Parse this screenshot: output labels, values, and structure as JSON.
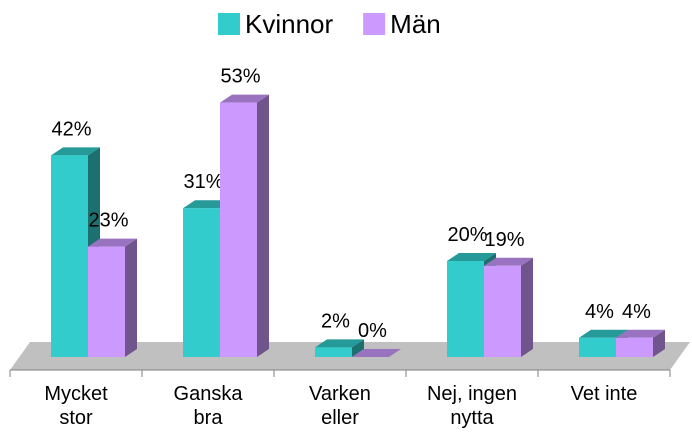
{
  "chart_data": {
    "type": "bar3d",
    "categories": [
      "Mycket stor",
      "Ganska bra",
      "Varken eller",
      "Nej, ingen nytta",
      "Vet inte"
    ],
    "series": [
      {
        "name": "Kvinnor",
        "color": "#33cccc",
        "values": [
          42,
          31,
          2,
          20,
          4
        ],
        "value_labels": [
          "42%",
          "31%",
          "2%",
          "20%",
          "4%"
        ]
      },
      {
        "name": "Män",
        "color": "#cc99ff",
        "values": [
          23,
          53,
          0,
          19,
          4
        ],
        "value_labels": [
          "23%",
          "53%",
          "0%",
          "19%",
          "4%"
        ]
      }
    ],
    "legend": "top"
  }
}
